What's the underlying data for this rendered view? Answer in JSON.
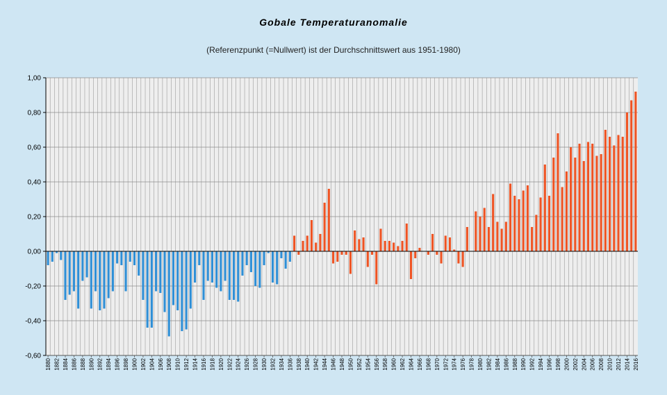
{
  "chart_data": {
    "type": "bar",
    "title": "Gobale Temperaturanomalie",
    "subtitle": "(Referenzpunkt (=Nullwert) ist der Durchschnittswert aus 1951-1980)",
    "xlabel": "",
    "ylabel": "",
    "ylim": [
      -0.6,
      1.0
    ],
    "yticks": [
      1.0,
      0.8,
      0.6,
      0.4,
      0.2,
      0.0,
      -0.2,
      -0.4,
      -0.6
    ],
    "ytick_labels": [
      "1,00",
      "0,80",
      "0,60",
      "0,40",
      "0,20",
      "0,00",
      "-0,20",
      "-0,40",
      "-0,60"
    ],
    "grid": true,
    "colors": {
      "negative": "#2f8fd6",
      "positive": "#ee5424",
      "plot_bg": "#eeeeee",
      "grid": "#9a9a9a"
    },
    "x_start": 1880,
    "x_end": 2016,
    "xtick_step": 2,
    "values": [
      -0.08,
      -0.06,
      -0.01,
      -0.05,
      -0.28,
      -0.25,
      -0.23,
      -0.33,
      -0.17,
      -0.15,
      -0.33,
      -0.23,
      -0.34,
      -0.33,
      -0.27,
      -0.23,
      -0.07,
      -0.08,
      -0.23,
      -0.06,
      -0.08,
      -0.14,
      -0.28,
      -0.44,
      -0.44,
      -0.23,
      -0.24,
      -0.35,
      -0.49,
      -0.31,
      -0.34,
      -0.46,
      -0.45,
      -0.33,
      -0.18,
      -0.08,
      -0.28,
      -0.17,
      -0.18,
      -0.21,
      -0.23,
      -0.17,
      -0.28,
      -0.28,
      -0.29,
      -0.14,
      -0.08,
      -0.12,
      -0.2,
      -0.21,
      -0.08,
      -0.01,
      -0.18,
      -0.19,
      -0.04,
      -0.1,
      -0.06,
      0.09,
      -0.02,
      0.06,
      0.09,
      0.18,
      0.05,
      0.1,
      0.28,
      0.36,
      -0.07,
      -0.06,
      -0.02,
      -0.02,
      -0.13,
      0.12,
      0.07,
      0.08,
      -0.09,
      -0.02,
      -0.19,
      0.13,
      0.06,
      0.06,
      0.05,
      0.03,
      0.06,
      0.16,
      -0.16,
      -0.04,
      0.02,
      0.0,
      -0.02,
      0.1,
      -0.02,
      -0.07,
      0.09,
      0.08,
      0.01,
      -0.07,
      -0.09,
      0.14,
      0.0,
      0.23,
      0.2,
      0.25,
      0.14,
      0.33,
      0.17,
      0.13,
      0.17,
      0.39,
      0.32,
      0.3,
      0.35,
      0.38,
      0.14,
      0.21,
      0.31,
      0.5,
      0.32,
      0.54,
      0.68,
      0.37,
      0.46,
      0.6,
      0.54,
      0.62,
      0.52,
      0.63,
      0.62,
      0.55,
      0.56,
      0.7,
      0.66,
      0.61,
      0.67,
      0.66,
      0.8,
      0.87,
      0.92
    ]
  }
}
